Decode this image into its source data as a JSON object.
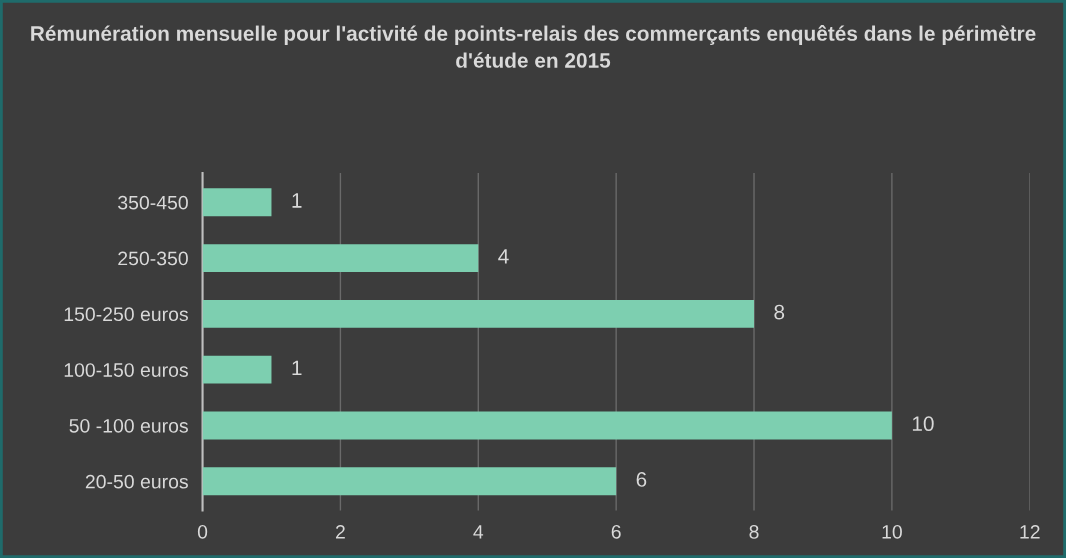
{
  "chart_data": {
    "type": "bar",
    "orientation": "horizontal",
    "title": "Rémunération mensuelle pour l'activité de points-relais des commerçants enquêtés dans le périmètre d'étude en 2015",
    "categories": [
      "350-450",
      "250-350",
      "150-250 euros",
      "100-150 euros",
      "50 -100 euros",
      "20-50 euros"
    ],
    "values": [
      1,
      4,
      8,
      1,
      10,
      6
    ],
    "color": "#7dcfb0",
    "xlim": [
      0,
      12
    ],
    "xticks": [
      0,
      2,
      4,
      6,
      8,
      10,
      12
    ],
    "grid": "x",
    "data_labels": true
  }
}
